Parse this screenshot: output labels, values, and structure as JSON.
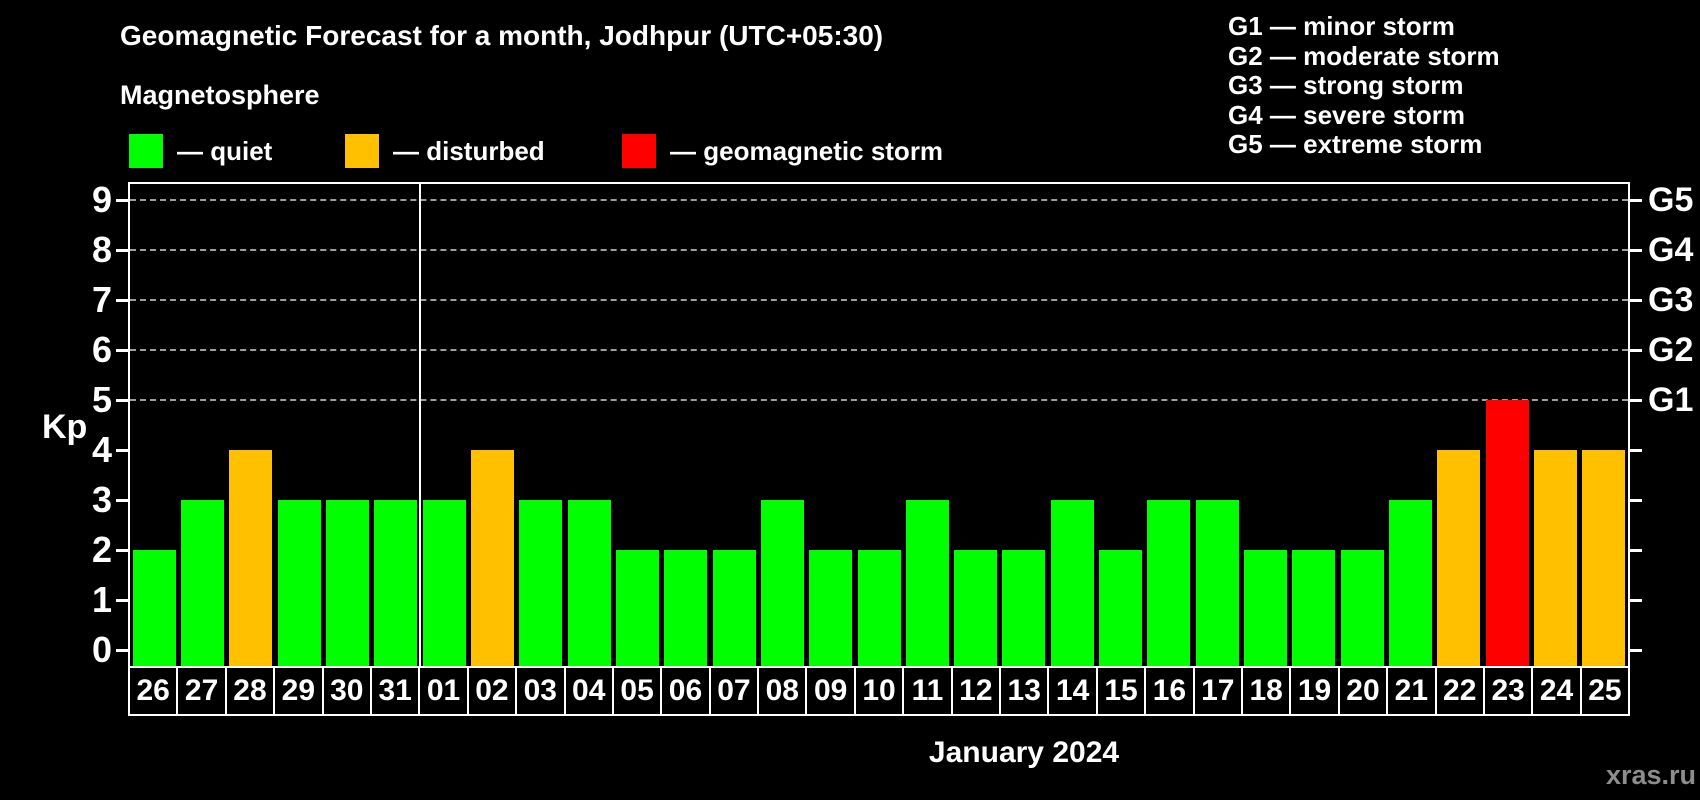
{
  "title": "Geomagnetic Forecast for a month, Jodhpur (UTC+05:30)",
  "subtitle": "Magnetosphere",
  "kp_legend": [
    {
      "status": "quiet",
      "label": "— quiet"
    },
    {
      "status": "disturbed",
      "label": "— disturbed"
    },
    {
      "status": "storm",
      "label": "— geomagnetic storm"
    }
  ],
  "g_legend": [
    "G1 — minor storm",
    "G2 — moderate storm",
    "G3 — strong storm",
    "G4 — severe storm",
    "G5 — extreme storm"
  ],
  "colors": {
    "quiet": "#00ff00",
    "disturbed": "#ffc000",
    "storm": "#ff0000"
  },
  "watermark": "xras.ru",
  "chart_data": {
    "type": "bar",
    "title": "Geomagnetic Forecast for a month, Jodhpur (UTC+05:30)",
    "ylabel": "Kp",
    "xlabel": "January 2024",
    "ylim": [
      0,
      9.7
    ],
    "y_ticks": [
      0,
      1,
      2,
      3,
      4,
      5,
      6,
      7,
      8,
      9
    ],
    "gridlines_at_kp": [
      5,
      6,
      7,
      8,
      9
    ],
    "right_axis_labels": [
      {
        "label": "G1",
        "kp": 5
      },
      {
        "label": "G2",
        "kp": 6
      },
      {
        "label": "G3",
        "kp": 7
      },
      {
        "label": "G4",
        "kp": 8
      },
      {
        "label": "G5",
        "kp": 9
      }
    ],
    "month_separator_after_index": 5,
    "categories": [
      "26",
      "27",
      "28",
      "29",
      "30",
      "31",
      "01",
      "02",
      "03",
      "04",
      "05",
      "06",
      "07",
      "08",
      "09",
      "10",
      "11",
      "12",
      "13",
      "14",
      "15",
      "16",
      "17",
      "18",
      "19",
      "20",
      "21",
      "22",
      "23",
      "24",
      "25"
    ],
    "values": [
      2,
      3,
      4,
      3,
      3,
      3,
      3,
      4,
      3,
      3,
      2,
      2,
      2,
      3,
      2,
      2,
      3,
      2,
      2,
      3,
      2,
      3,
      3,
      2,
      2,
      2,
      3,
      4,
      5,
      4,
      4
    ],
    "status": [
      "quiet",
      "quiet",
      "disturbed",
      "quiet",
      "quiet",
      "quiet",
      "quiet",
      "disturbed",
      "quiet",
      "quiet",
      "quiet",
      "quiet",
      "quiet",
      "quiet",
      "quiet",
      "quiet",
      "quiet",
      "quiet",
      "quiet",
      "quiet",
      "quiet",
      "quiet",
      "quiet",
      "quiet",
      "quiet",
      "quiet",
      "quiet",
      "disturbed",
      "storm",
      "disturbed",
      "disturbed"
    ],
    "legend_position": "top-left",
    "grid": "dashed-horizontal"
  }
}
